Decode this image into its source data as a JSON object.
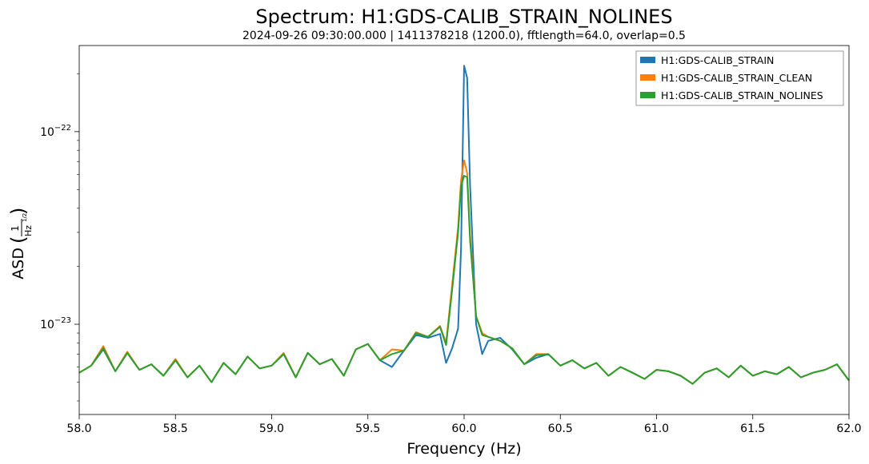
{
  "chart_data": {
    "type": "line",
    "title": "Spectrum: H1:GDS-CALIB_STRAIN_NOLINES",
    "subtitle": "2024-09-26 09:30:00.000 | 1411378218 (1200.0), fftlength=64.0, overlap=0.5",
    "xlabel": "Frequency (Hz)",
    "ylabel": "ASD",
    "ylabel_unit": {
      "numerator": "1",
      "denominator_base": "Hz",
      "denominator_exp": "1/2"
    },
    "x_scale": "linear",
    "y_scale": "log",
    "xlim": [
      58.0,
      62.0
    ],
    "ylim": [
      3.4e-24,
      2.8e-22
    ],
    "x_ticks": [
      58.0,
      58.5,
      59.0,
      59.5,
      60.0,
      60.5,
      61.0,
      61.5,
      62.0
    ],
    "x_tick_labels": [
      "58.0",
      "58.5",
      "59.0",
      "59.5",
      "60.0",
      "60.5",
      "61.0",
      "61.5",
      "62.0"
    ],
    "y_ticks": [
      {
        "value": 1e-23,
        "mantissa": "10",
        "exponent": "−23"
      },
      {
        "value": 1e-22,
        "mantissa": "10",
        "exponent": "−22"
      }
    ],
    "y_minor_ticks": [
      4e-24,
      5e-24,
      6e-24,
      7e-24,
      8e-24,
      9e-24,
      2e-23,
      3e-23,
      4e-23,
      5e-23,
      6e-23,
      7e-23,
      8e-23,
      9e-23,
      2e-22
    ],
    "grid": false,
    "legend_position": "top-right",
    "x": [
      58.0,
      58.0625,
      58.125,
      58.1875,
      58.25,
      58.3125,
      58.375,
      58.4375,
      58.5,
      58.5625,
      58.625,
      58.6875,
      58.75,
      58.8125,
      58.875,
      58.9375,
      59.0,
      59.0625,
      59.125,
      59.1875,
      59.25,
      59.3125,
      59.375,
      59.4375,
      59.5,
      59.5625,
      59.625,
      59.6875,
      59.75,
      59.8125,
      59.875,
      59.9063,
      59.9375,
      59.9688,
      59.9844,
      60.0,
      60.0156,
      60.0313,
      60.0625,
      60.0938,
      60.125,
      60.1875,
      60.25,
      60.3125,
      60.375,
      60.4375,
      60.5,
      60.5625,
      60.625,
      60.6875,
      60.75,
      60.8125,
      60.875,
      60.9375,
      61.0,
      61.0625,
      61.125,
      61.1875,
      61.25,
      61.3125,
      61.375,
      61.4375,
      61.5,
      61.5625,
      61.625,
      61.6875,
      61.75,
      61.8125,
      61.875,
      61.9375,
      62.0
    ],
    "series": [
      {
        "name": "H1:GDS-CALIB_STRAIN",
        "color": "#1f77b4",
        "values": [
          5.6e-24,
          6.1e-24,
          7.4e-24,
          5.7e-24,
          7.1e-24,
          5.8e-24,
          6.2e-24,
          5.4e-24,
          6.5e-24,
          5.3e-24,
          6.1e-24,
          5e-24,
          6.3e-24,
          5.5e-24,
          6.8e-24,
          5.9e-24,
          6.1e-24,
          7e-24,
          5.3e-24,
          7.1e-24,
          6.2e-24,
          6.6e-24,
          5.4e-24,
          7.4e-24,
          7.9e-24,
          6.5e-24,
          6e-24,
          7.3e-24,
          8.8e-24,
          8.5e-24,
          8.9e-24,
          6.3e-24,
          7.5e-24,
          9.5e-24,
          2.5e-23,
          2.2e-22,
          1.9e-22,
          5.2e-23,
          1e-23,
          7e-24,
          8.2e-24,
          8.5e-24,
          7.4e-24,
          6.2e-24,
          6.7e-24,
          7e-24,
          6.1e-24,
          6.5e-24,
          5.9e-24,
          6.3e-24,
          5.4e-24,
          6e-24,
          5.6e-24,
          5.2e-24,
          5.8e-24,
          5.7e-24,
          5.4e-24,
          4.9e-24,
          5.6e-24,
          5.9e-24,
          5.3e-24,
          6.1e-24,
          5.4e-24,
          5.7e-24,
          5.5e-24,
          6e-24,
          5.3e-24,
          5.6e-24,
          5.8e-24,
          6.2e-24,
          5.1e-24
        ]
      },
      {
        "name": "H1:GDS-CALIB_STRAIN_CLEAN",
        "color": "#ff7f0e",
        "values": [
          5.6e-24,
          6.1e-24,
          7.7e-24,
          5.7e-24,
          7.2e-24,
          5.8e-24,
          6.2e-24,
          5.4e-24,
          6.6e-24,
          5.3e-24,
          6.1e-24,
          5e-24,
          6.3e-24,
          5.5e-24,
          6.8e-24,
          5.9e-24,
          6.1e-24,
          7.1e-24,
          5.3e-24,
          7.1e-24,
          6.2e-24,
          6.6e-24,
          5.4e-24,
          7.4e-24,
          7.9e-24,
          6.5e-24,
          7.4e-24,
          7.3e-24,
          9.1e-24,
          8.6e-24,
          9.8e-24,
          8e-24,
          1.6e-23,
          3.2e-23,
          5.6e-23,
          7.1e-23,
          6.1e-23,
          2.9e-23,
          1.1e-23,
          9e-24,
          8.6e-24,
          8.2e-24,
          7.5e-24,
          6.2e-24,
          7e-24,
          7e-24,
          6.1e-24,
          6.5e-24,
          5.9e-24,
          6.3e-24,
          5.4e-24,
          6e-24,
          5.6e-24,
          5.2e-24,
          5.8e-24,
          5.7e-24,
          5.4e-24,
          4.9e-24,
          5.6e-24,
          5.9e-24,
          5.3e-24,
          6.1e-24,
          5.4e-24,
          5.7e-24,
          5.5e-24,
          6e-24,
          5.3e-24,
          5.6e-24,
          5.8e-24,
          6.2e-24,
          5.1e-24
        ]
      },
      {
        "name": "H1:GDS-CALIB_STRAIN_NOLINES",
        "color": "#2ca02c",
        "values": [
          5.6e-24,
          6.1e-24,
          7.5e-24,
          5.7e-24,
          7.1e-24,
          5.8e-24,
          6.2e-24,
          5.4e-24,
          6.5e-24,
          5.3e-24,
          6.1e-24,
          5e-24,
          6.3e-24,
          5.5e-24,
          6.8e-24,
          5.9e-24,
          6.1e-24,
          7e-24,
          5.3e-24,
          7.1e-24,
          6.2e-24,
          6.6e-24,
          5.4e-24,
          7.4e-24,
          7.9e-24,
          6.5e-24,
          7e-24,
          7.3e-24,
          9e-24,
          8.6e-24,
          9.7e-24,
          7.8e-24,
          1.5e-23,
          3e-23,
          5.2e-23,
          5.9e-23,
          5.8e-23,
          2.7e-23,
          1.1e-23,
          8.8e-24,
          8.6e-24,
          8.2e-24,
          7.5e-24,
          6.2e-24,
          6.9e-24,
          7e-24,
          6.1e-24,
          6.5e-24,
          5.9e-24,
          6.3e-24,
          5.4e-24,
          6e-24,
          5.6e-24,
          5.2e-24,
          5.8e-24,
          5.7e-24,
          5.4e-24,
          4.9e-24,
          5.6e-24,
          5.9e-24,
          5.3e-24,
          6.1e-24,
          5.4e-24,
          5.7e-24,
          5.5e-24,
          6e-24,
          5.3e-24,
          5.6e-24,
          5.8e-24,
          6.2e-24,
          5.1e-24
        ]
      }
    ]
  }
}
